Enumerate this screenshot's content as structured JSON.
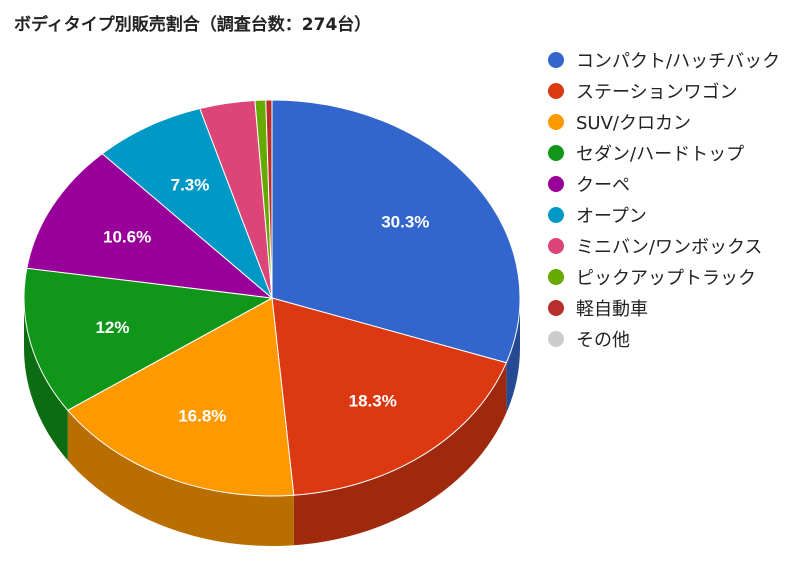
{
  "chart_data": {
    "type": "pie",
    "title": "ボディタイプ別販売割合（調査台数：274台）",
    "legend_position": "right",
    "slices": [
      {
        "name": "コンパクト/ハッチバック",
        "value": 30.3,
        "label": "30.3%",
        "color": "#3366cc"
      },
      {
        "name": "ステーションワゴン",
        "value": 18.3,
        "label": "18.3%",
        "color": "#dc3912"
      },
      {
        "name": "SUV/クロカン",
        "value": 16.8,
        "label": "16.8%",
        "color": "#ff9900"
      },
      {
        "name": "セダン/ハードトップ",
        "value": 12.0,
        "label": "12%",
        "color": "#109618"
      },
      {
        "name": "クーペ",
        "value": 10.6,
        "label": "10.6%",
        "color": "#990099"
      },
      {
        "name": "オープン",
        "value": 7.3,
        "label": "7.3%",
        "color": "#0099c6"
      },
      {
        "name": "ミニバン/ワンボックス",
        "value": 3.6,
        "label": "",
        "color": "#dd4477"
      },
      {
        "name": "ピックアップトラック",
        "value": 0.7,
        "label": "",
        "color": "#66aa00"
      },
      {
        "name": "軽自動車",
        "value": 0.4,
        "label": "",
        "color": "#b82e2e"
      },
      {
        "name": "その他",
        "value": 0.0,
        "label": "",
        "color": "#cccccc"
      }
    ]
  }
}
